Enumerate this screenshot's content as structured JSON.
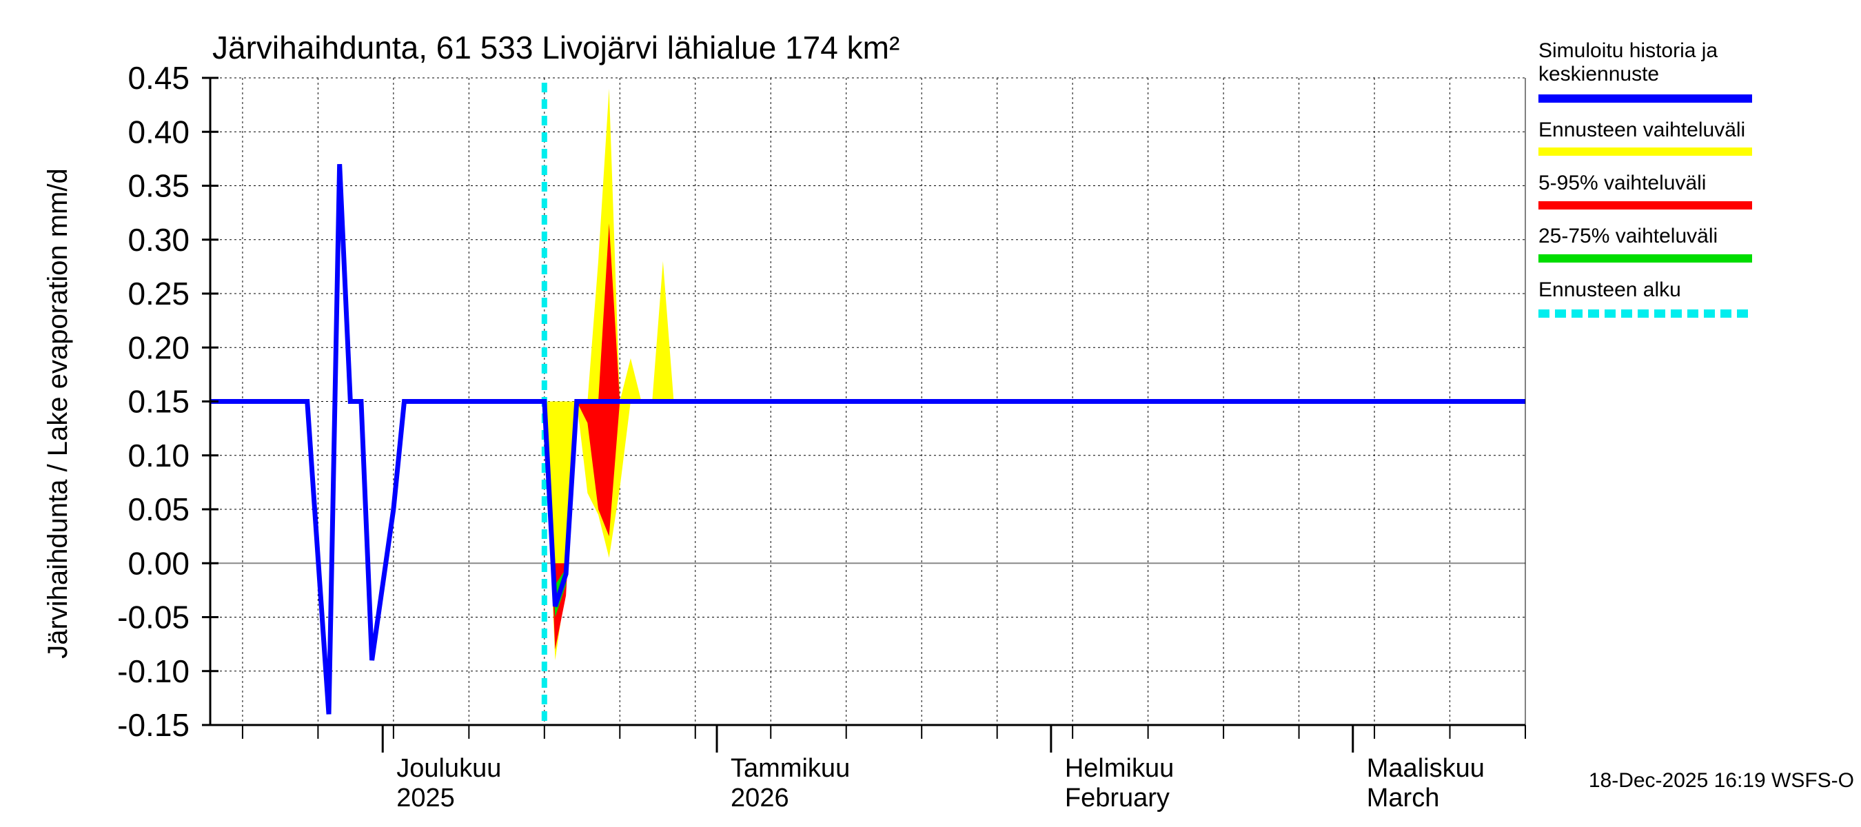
{
  "chart_data": {
    "type": "line",
    "title": "Järvihaihdunta, 61 533 Livojärvi lähialue 174 km²",
    "ylabel": "Järvihaihdunta / Lake evaporation   mm/d",
    "xlabel": "",
    "ylim": [
      -0.15,
      0.45
    ],
    "yticks": [
      {
        "value": 0.45,
        "label": "0.45"
      },
      {
        "value": 0.4,
        "label": "0.40"
      },
      {
        "value": 0.35,
        "label": "0.35"
      },
      {
        "value": 0.3,
        "label": "0.30"
      },
      {
        "value": 0.25,
        "label": "0.25"
      },
      {
        "value": 0.2,
        "label": "0.20"
      },
      {
        "value": 0.15,
        "label": "0.15"
      },
      {
        "value": 0.1,
        "label": "0.10"
      },
      {
        "value": 0.05,
        "label": "0.05"
      },
      {
        "value": 0.0,
        "label": "0.00"
      },
      {
        "value": -0.05,
        "label": "-0.05"
      },
      {
        "value": -0.1,
        "label": "-0.10"
      },
      {
        "value": -0.15,
        "label": "-0.15"
      }
    ],
    "x_range_days": [
      0,
      122
    ],
    "x_unit": "days since 2025-11-15",
    "month_labels": [
      {
        "day": 16,
        "line1": "Joulukuu",
        "line2": "2025"
      },
      {
        "day": 47,
        "line1": "Tammikuu",
        "line2": "2026"
      },
      {
        "day": 78,
        "line1": "Helmikuu",
        "line2": "February"
      },
      {
        "day": 106,
        "line1": "Maaliskuu",
        "line2": "March"
      }
    ],
    "month_boundaries": [
      16,
      47,
      78,
      106
    ],
    "forecast_start_day": 31,
    "series": [
      {
        "name": "Simuloitu historia ja keskiennuste",
        "color": "#0000ff",
        "points": [
          [
            0,
            0.15
          ],
          [
            9,
            0.15
          ],
          [
            11,
            -0.14
          ],
          [
            12,
            0.37
          ],
          [
            13,
            0.15
          ],
          [
            14,
            0.15
          ],
          [
            15,
            -0.09
          ],
          [
            17,
            0.05
          ],
          [
            18,
            0.15
          ],
          [
            31,
            0.15
          ],
          [
            32,
            -0.04
          ],
          [
            33,
            -0.01
          ],
          [
            34,
            0.15
          ],
          [
            122,
            0.15
          ]
        ]
      }
    ],
    "bands": [
      {
        "name": "Ennusteen vaihteluväli",
        "color": "#ffff00",
        "upper": [
          [
            31,
            0.15
          ],
          [
            33,
            0.15
          ],
          [
            35,
            0.15
          ],
          [
            36,
            0.28
          ],
          [
            37,
            0.44
          ],
          [
            38,
            0.15
          ],
          [
            39,
            0.19
          ],
          [
            40,
            0.15
          ],
          [
            41,
            0.15
          ],
          [
            42,
            0.28
          ],
          [
            43,
            0.15
          ],
          [
            44,
            0.15
          ]
        ],
        "lower": [
          [
            31,
            0.15
          ],
          [
            32,
            -0.09
          ],
          [
            33,
            -0.02
          ],
          [
            34,
            0.15
          ],
          [
            35,
            0.065
          ],
          [
            36,
            0.045
          ],
          [
            37,
            0.005
          ],
          [
            38,
            0.07
          ],
          [
            39,
            0.15
          ],
          [
            40,
            0.15
          ],
          [
            41,
            0.15
          ],
          [
            42,
            0.15
          ],
          [
            43,
            0.15
          ],
          [
            44,
            0.15
          ]
        ]
      },
      {
        "name": "5-95% vaihteluväli",
        "color": "#ff0000",
        "upper": [
          [
            31,
            0.15
          ],
          [
            32,
            0.0
          ],
          [
            33,
            0.0
          ],
          [
            34,
            0.15
          ],
          [
            35,
            0.15
          ],
          [
            36,
            0.15
          ],
          [
            37,
            0.315
          ],
          [
            38,
            0.15
          ]
        ],
        "lower": [
          [
            31,
            0.15
          ],
          [
            32,
            -0.08
          ],
          [
            33,
            -0.03
          ],
          [
            34,
            0.15
          ],
          [
            35,
            0.13
          ],
          [
            36,
            0.05
          ],
          [
            37,
            0.025
          ],
          [
            38,
            0.15
          ]
        ]
      },
      {
        "name": "25-75% vaihteluväli",
        "color": "#00dd00",
        "upper": [
          [
            31,
            0.15
          ],
          [
            32,
            -0.02
          ],
          [
            33,
            -0.005
          ],
          [
            34,
            0.15
          ]
        ],
        "lower": [
          [
            31,
            0.15
          ],
          [
            32,
            -0.05
          ],
          [
            33,
            -0.02
          ],
          [
            34,
            0.15
          ]
        ]
      }
    ],
    "legend": {
      "placement": "right",
      "entries": [
        {
          "line1": "Simuloitu historia ja",
          "line2": "keskiennuste",
          "color": "#0000ff",
          "style": "solid"
        },
        {
          "line1": "Ennusteen vaihteluväli",
          "line2": "",
          "color": "#ffff00",
          "style": "solid"
        },
        {
          "line1": "5-95% vaihteluväli",
          "line2": "",
          "color": "#ff0000",
          "style": "solid"
        },
        {
          "line1": "25-75% vaihteluväli",
          "line2": "",
          "color": "#00dd00",
          "style": "solid"
        },
        {
          "line1": "Ennusteen alku",
          "line2": "",
          "color": "#00eeee",
          "style": "dashed"
        }
      ]
    },
    "footer": "18-Dec-2025 16:19 WSFS-O"
  }
}
